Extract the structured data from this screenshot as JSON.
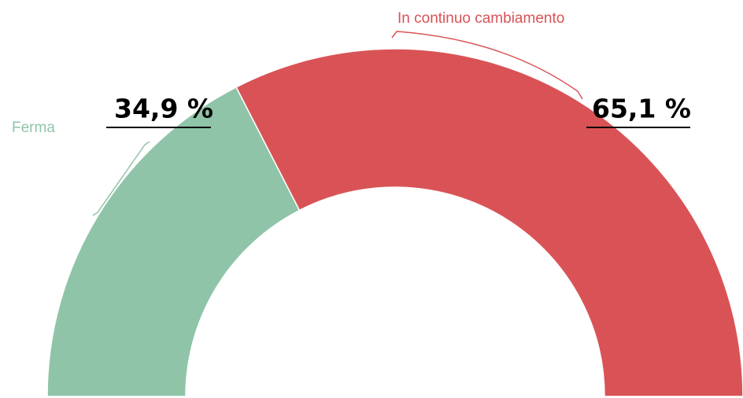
{
  "chart_data": {
    "type": "donut",
    "categories": [
      "Ferma",
      "In continuo cambiamento"
    ],
    "values": [
      34.9,
      65.1
    ],
    "value_labels": [
      "34,9 %",
      "65,1 %"
    ],
    "colors": [
      "#8fc4a8",
      "#d95356"
    ]
  }
}
